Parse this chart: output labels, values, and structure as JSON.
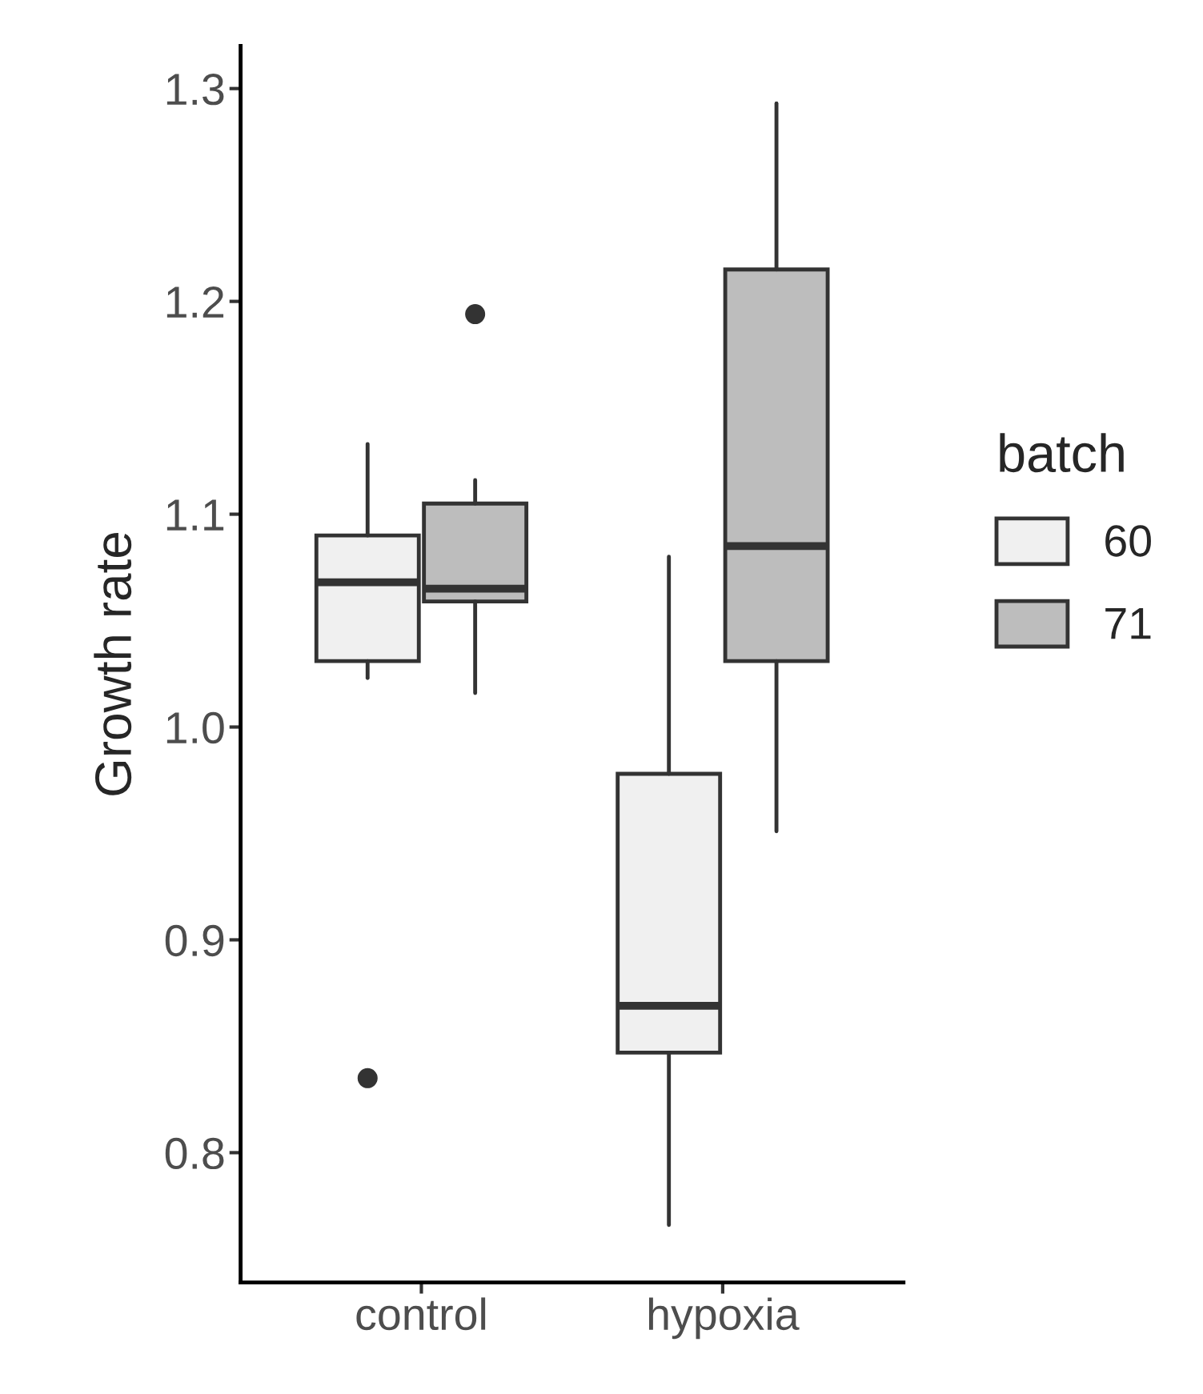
{
  "chart_data": {
    "type": "box",
    "ylabel": "Growth rate",
    "legend_title": "batch",
    "legend": "right",
    "grid": false,
    "categories": [
      "control",
      "hypoxia"
    ],
    "ylim": [
      0.739,
      1.32
    ],
    "yticks": [
      0.8,
      0.9,
      {
        "value": 1.0,
        "label": "1.0"
      },
      1.1,
      1.2,
      1.3
    ],
    "series": [
      {
        "name": "60",
        "color": "#f0f0f0",
        "boxes": [
          {
            "low": 1.023,
            "q1": 1.031,
            "median": 1.068,
            "q3": 1.09,
            "high": 1.133,
            "outliers": [
              0.835
            ]
          },
          {
            "low": 0.766,
            "q1": 0.847,
            "median": 0.869,
            "q3": 0.978,
            "high": 1.08
          }
        ]
      },
      {
        "name": "71",
        "color": "#bdbdbd",
        "boxes": [
          {
            "low": 1.016,
            "q1": 1.059,
            "median": 1.065,
            "q3": 1.105,
            "high": 1.116,
            "outliers": [
              1.194
            ]
          },
          {
            "low": 0.951,
            "q1": 1.031,
            "median": 1.085,
            "q3": 1.215,
            "high": 1.293
          }
        ]
      }
    ]
  }
}
